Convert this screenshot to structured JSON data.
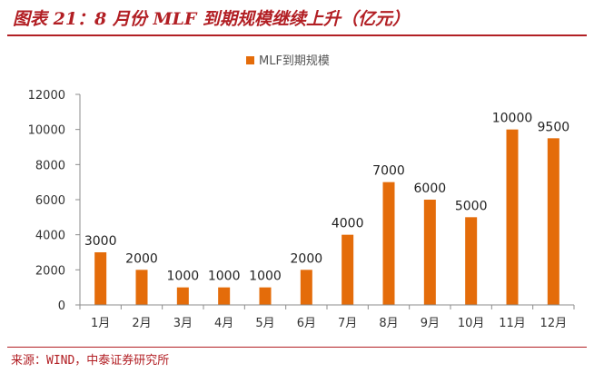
{
  "figure": {
    "title": "图表 21：8 月份 MLF 到期规模继续上升（亿元）",
    "source": "来源：WIND，中泰证券研究所"
  },
  "colors": {
    "bar": "#E46C0A",
    "accent": "#B21F24"
  },
  "chart_data": {
    "type": "bar",
    "categories": [
      "1月",
      "2月",
      "3月",
      "4月",
      "5月",
      "6月",
      "7月",
      "8月",
      "9月",
      "10月",
      "11月",
      "12月"
    ],
    "series": [
      {
        "name": "MLF到期规模",
        "values": [
          3000,
          2000,
          1000,
          1000,
          1000,
          2000,
          4000,
          7000,
          6000,
          5000,
          10000,
          9500
        ]
      }
    ],
    "data_labels": [
      "3000",
      "2000",
      "1000",
      "1000",
      "1000",
      "2000",
      "4000",
      "7000",
      "6000",
      "5000",
      "10000",
      "9500"
    ],
    "y_ticks": [
      0,
      2000,
      4000,
      6000,
      8000,
      10000,
      12000
    ],
    "ylim": [
      0,
      12000
    ],
    "legend_position": "top-center",
    "grid": false
  }
}
